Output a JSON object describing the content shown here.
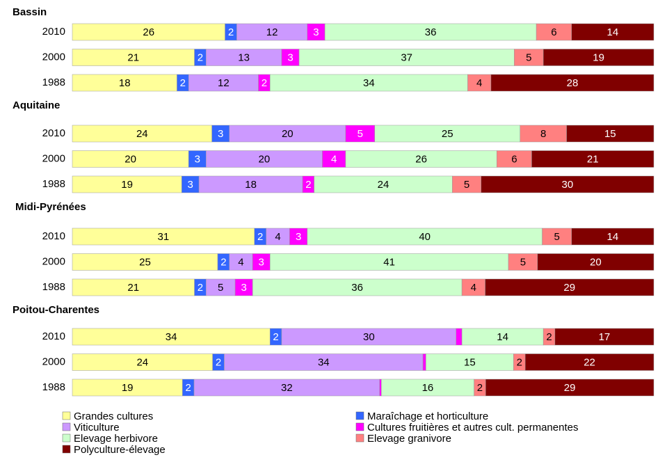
{
  "chart_data": {
    "type": "bar",
    "orientation": "horizontal",
    "stacked": true,
    "series": [
      {
        "name": "Grandes cultures",
        "color": "#ffff99"
      },
      {
        "name": "Maraîchage et horticulture",
        "color": "#3366ff"
      },
      {
        "name": "Viticulture",
        "color": "#cc99ff"
      },
      {
        "name": "Cultures fruitières et autres cult. permanentes",
        "color": "#ff00ff"
      },
      {
        "name": "Elevage herbivore",
        "color": "#ccffcc"
      },
      {
        "name": "Elevage granivore",
        "color": "#ff8080"
      },
      {
        "name": "Polyculture-élevage",
        "color": "#800000"
      }
    ],
    "groups": [
      {
        "title": "Bassin",
        "categories": [
          "2010",
          "2000",
          "1988"
        ],
        "series": [
          {
            "values": [
              26,
              21,
              18
            ]
          },
          {
            "values": [
              2,
              2,
              2
            ]
          },
          {
            "values": [
              12,
              13,
              12
            ]
          },
          {
            "values": [
              3,
              3,
              2
            ]
          },
          {
            "values": [
              36,
              37,
              34
            ]
          },
          {
            "values": [
              6,
              5,
              4
            ]
          },
          {
            "values": [
              14,
              19,
              28
            ]
          }
        ]
      },
      {
        "title": "Aquitaine",
        "categories": [
          "2010",
          "2000",
          "1988"
        ],
        "series": [
          {
            "values": [
              24,
              20,
              19
            ]
          },
          {
            "values": [
              3,
              3,
              3
            ]
          },
          {
            "values": [
              20,
              20,
              18
            ]
          },
          {
            "values": [
              5,
              4,
              2
            ]
          },
          {
            "values": [
              25,
              26,
              24
            ]
          },
          {
            "values": [
              8,
              6,
              5
            ]
          },
          {
            "values": [
              15,
              21,
              30
            ]
          }
        ]
      },
      {
        "title": "Midi-Pyrénées",
        "categories": [
          "2010",
          "2000",
          "1988"
        ],
        "series": [
          {
            "values": [
              31,
              25,
              21
            ]
          },
          {
            "values": [
              2,
              2,
              2
            ]
          },
          {
            "values": [
              4,
              4,
              5
            ]
          },
          {
            "values": [
              3,
              3,
              3
            ]
          },
          {
            "values": [
              40,
              41,
              36
            ]
          },
          {
            "values": [
              5,
              5,
              4
            ]
          },
          {
            "values": [
              14,
              20,
              29
            ]
          }
        ]
      },
      {
        "title": "Poitou-Charentes",
        "categories": [
          "2010",
          "2000",
          "1988"
        ],
        "series": [
          {
            "values": [
              34,
              24,
              19
            ]
          },
          {
            "values": [
              2,
              2,
              2
            ]
          },
          {
            "values": [
              30,
              34,
              32
            ]
          },
          {
            "values": [
              1,
              0.5,
              0.3
            ],
            "value_labels": [
              null,
              null,
              null
            ]
          },
          {
            "values": [
              14,
              15,
              16
            ]
          },
          {
            "values": [
              2,
              2,
              2
            ]
          },
          {
            "values": [
              17,
              22,
              29
            ]
          }
        ]
      }
    ]
  }
}
